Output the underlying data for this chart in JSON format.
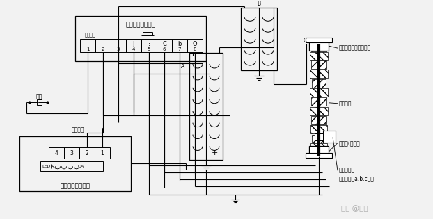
{
  "bg_color": "#f2f2f2",
  "line_color": "#000000",
  "text_color": "#000000",
  "watermark": "知乎 @水牛",
  "labels": {
    "indicator_box": "指示器背视接线图",
    "em_lock_box": "电磁锁背视接线图",
    "upper_flange": "上法兰（接高压母排）",
    "cap_core": "电容芯棒",
    "lower_flange": "下法兰(接地）",
    "voltage_tap": "电压抽取端",
    "voltage_tap2": "（接指示器a.b.c端）",
    "label_A": "A",
    "label_B": "B",
    "label_C": "C",
    "dianchi": "电源",
    "em_input": "电源输入",
    "dianyuan_input": "电源输入"
  },
  "terminal_labels": [
    "",
    "",
    "J",
    "J",
    "÷",
    "C",
    "b",
    "O"
  ],
  "terminal_nums": [
    "1",
    "2",
    "3",
    "4",
    "5",
    "6",
    "7",
    "8"
  ]
}
